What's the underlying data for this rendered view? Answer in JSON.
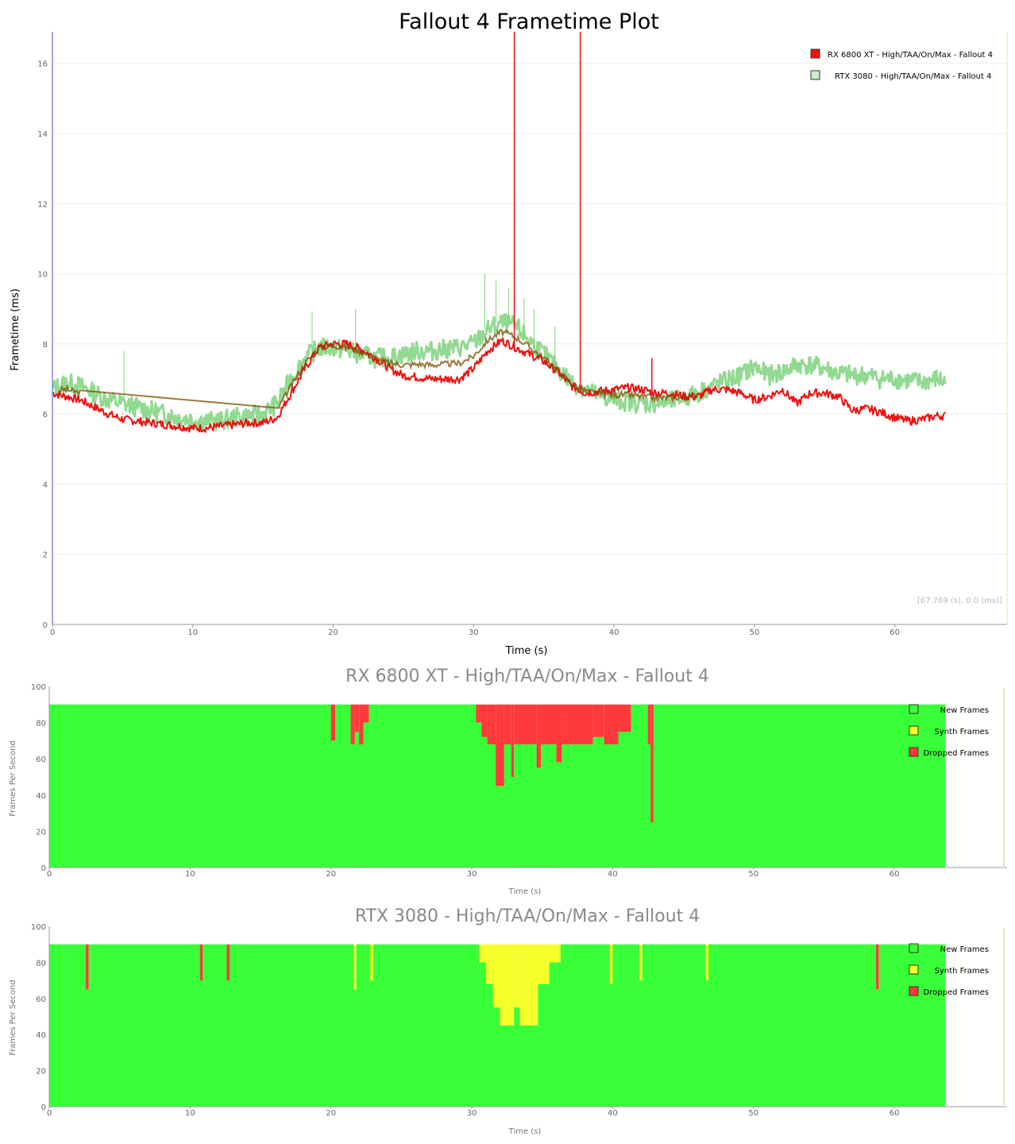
{
  "chart_data": [
    {
      "type": "line",
      "title": "Fallout 4 Frametime Plot",
      "xlabel": "Time (s)",
      "ylabel": "Frametime (ms)",
      "xlim": [
        0,
        68
      ],
      "ylim": [
        0,
        16.9
      ],
      "x_ticks": [
        "0",
        "10",
        "20",
        "30",
        "40",
        "50",
        "60"
      ],
      "y_ticks": [
        "0",
        "2",
        "4",
        "6",
        "8",
        "10",
        "12",
        "14",
        "16"
      ],
      "grid": true,
      "legend_position": "top-right",
      "cursor_readout": "[67.769 (s), 0.0 (ms)]",
      "colors": {
        "rx": "#ee1111",
        "rtx": "#7fd27f",
        "overlap": "#7a4d00"
      },
      "series": [
        {
          "name": "RX 6800 XT - High/TAA/On/Max - Fallout 4",
          "color": "#ee1111",
          "x": [
            0,
            1,
            2,
            3,
            4,
            5,
            6,
            7,
            8,
            9,
            10,
            11,
            12,
            13,
            14,
            15,
            16,
            17,
            18,
            19,
            20,
            21,
            22,
            23,
            24,
            25,
            26,
            27,
            28,
            29,
            30,
            31,
            32,
            33,
            34,
            35,
            36,
            37,
            38,
            39,
            40,
            41,
            42,
            43,
            44,
            45,
            46,
            47,
            48,
            49,
            50,
            51,
            52,
            53,
            54,
            55,
            56,
            57,
            58,
            59,
            60,
            61,
            62,
            63,
            63.6
          ],
          "y": [
            6.6,
            6.5,
            6.4,
            6.2,
            6.0,
            5.85,
            5.8,
            5.75,
            5.7,
            5.65,
            5.6,
            5.6,
            5.65,
            5.7,
            5.75,
            5.75,
            5.9,
            6.6,
            7.3,
            7.9,
            8.0,
            8.0,
            7.85,
            7.6,
            7.3,
            7.1,
            7.05,
            7.0,
            7.0,
            7.0,
            7.3,
            7.8,
            8.1,
            7.9,
            7.7,
            7.5,
            7.2,
            6.8,
            6.6,
            6.65,
            6.7,
            6.75,
            6.7,
            6.6,
            6.6,
            6.5,
            6.5,
            6.7,
            6.7,
            6.6,
            6.4,
            6.5,
            6.7,
            6.3,
            6.6,
            6.6,
            6.5,
            6.1,
            6.15,
            6.05,
            5.9,
            5.8,
            5.85,
            5.95,
            5.95
          ],
          "spikes": [
            [
              32.9,
              16.9
            ],
            [
              37.6,
              16.9
            ],
            [
              42.7,
              7.6
            ]
          ]
        },
        {
          "name": "RTX 3080 - High/TAA/On/Max - Fallout 4",
          "color": "#7fd27f",
          "x": [
            0,
            1,
            2,
            3,
            4,
            5,
            6,
            7,
            8,
            9,
            10,
            11,
            12,
            13,
            14,
            15,
            16,
            17,
            18,
            19,
            20,
            21,
            22,
            23,
            24,
            25,
            26,
            27,
            28,
            29,
            30,
            31,
            32,
            33,
            34,
            35,
            36,
            37,
            38,
            39,
            40,
            41,
            42,
            43,
            44,
            45,
            46,
            47,
            48,
            49,
            50,
            51,
            52,
            53,
            54,
            55,
            56,
            57,
            58,
            59,
            60,
            61,
            62,
            63,
            63.6
          ],
          "y": [
            6.7,
            6.9,
            6.8,
            6.6,
            6.4,
            6.3,
            6.2,
            6.1,
            6.0,
            5.9,
            5.85,
            5.8,
            5.8,
            5.9,
            5.95,
            6.0,
            6.3,
            7.0,
            7.6,
            7.9,
            7.9,
            7.8,
            7.7,
            7.6,
            7.6,
            7.7,
            7.8,
            7.8,
            7.85,
            7.9,
            8.0,
            8.4,
            8.6,
            8.5,
            8.1,
            7.7,
            7.3,
            6.9,
            6.7,
            6.5,
            6.4,
            6.35,
            6.3,
            6.3,
            6.35,
            6.45,
            6.6,
            6.8,
            6.95,
            7.1,
            7.35,
            7.1,
            7.2,
            7.4,
            7.4,
            7.3,
            7.15,
            7.1,
            7.1,
            7.0,
            7.0,
            6.95,
            6.9,
            7.0,
            6.9
          ],
          "spikes": [
            [
              5.1,
              7.8
            ],
            [
              18.5,
              8.9
            ],
            [
              21.6,
              9.0
            ],
            [
              30.8,
              10.0
            ],
            [
              31.6,
              9.8
            ],
            [
              32.5,
              9.6
            ],
            [
              33.6,
              9.3
            ],
            [
              34.3,
              9.0
            ],
            [
              35.8,
              8.5
            ]
          ]
        }
      ]
    },
    {
      "type": "area",
      "title": "RX 6800 XT - High/TAA/On/Max - Fallout 4",
      "xlabel": "Time (s)",
      "ylabel": "Frames Per Second",
      "xlim": [
        0,
        68
      ],
      "ylim": [
        0,
        100
      ],
      "x_ticks": [
        "0",
        "10",
        "20",
        "30",
        "40",
        "50",
        "60"
      ],
      "y_ticks": [
        "0",
        "20",
        "40",
        "60",
        "80",
        "100"
      ],
      "total_fps": 90,
      "end_time": 63.6,
      "colors": {
        "new": "#39ff39",
        "synth": "#f5ff2a",
        "dropped": "#ff3a3a"
      },
      "legend": [
        "New Frames",
        "Synth Frames",
        "Dropped Frames"
      ],
      "segments": [
        {
          "start": 0,
          "end": 20.0,
          "new_fps": 90
        },
        {
          "start": 20.0,
          "end": 20.3,
          "new_fps": 70
        },
        {
          "start": 20.3,
          "end": 21.4,
          "new_fps": 90
        },
        {
          "start": 21.4,
          "end": 21.7,
          "new_fps": 68
        },
        {
          "start": 21.7,
          "end": 22.0,
          "new_fps": 75
        },
        {
          "start": 22.0,
          "end": 22.3,
          "new_fps": 68
        },
        {
          "start": 22.3,
          "end": 22.7,
          "new_fps": 80
        },
        {
          "start": 22.7,
          "end": 30.3,
          "new_fps": 90
        },
        {
          "start": 30.3,
          "end": 30.7,
          "new_fps": 80
        },
        {
          "start": 30.7,
          "end": 31.1,
          "new_fps": 72
        },
        {
          "start": 31.1,
          "end": 31.7,
          "new_fps": 68
        },
        {
          "start": 31.7,
          "end": 32.3,
          "new_fps": 45
        },
        {
          "start": 32.3,
          "end": 32.8,
          "new_fps": 68
        },
        {
          "start": 32.8,
          "end": 33.0,
          "new_fps": 50
        },
        {
          "start": 33.0,
          "end": 34.6,
          "new_fps": 68
        },
        {
          "start": 34.6,
          "end": 34.9,
          "new_fps": 55
        },
        {
          "start": 34.9,
          "end": 36.0,
          "new_fps": 68
        },
        {
          "start": 36.0,
          "end": 36.4,
          "new_fps": 58
        },
        {
          "start": 36.4,
          "end": 38.6,
          "new_fps": 68
        },
        {
          "start": 38.6,
          "end": 39.4,
          "new_fps": 72
        },
        {
          "start": 39.4,
          "end": 40.4,
          "new_fps": 68
        },
        {
          "start": 40.4,
          "end": 41.3,
          "new_fps": 75
        },
        {
          "start": 41.3,
          "end": 42.5,
          "new_fps": 90
        },
        {
          "start": 42.5,
          "end": 42.7,
          "new_fps": 68
        },
        {
          "start": 42.7,
          "end": 42.9,
          "new_fps": 25
        },
        {
          "start": 42.9,
          "end": 63.6,
          "new_fps": 90
        }
      ]
    },
    {
      "type": "area",
      "title": "RTX 3080 - High/TAA/On/Max - Fallout 4",
      "xlabel": "Time (s)",
      "ylabel": "Frames Per Second",
      "xlim": [
        0,
        68
      ],
      "ylim": [
        0,
        100
      ],
      "x_ticks": [
        "0",
        "10",
        "20",
        "30",
        "40",
        "50",
        "60"
      ],
      "y_ticks": [
        "0",
        "20",
        "40",
        "60",
        "80",
        "100"
      ],
      "total_fps": 90,
      "end_time": 63.6,
      "colors": {
        "new": "#39ff39",
        "synth": "#f5ff2a",
        "dropped": "#ff3a3a"
      },
      "legend": [
        "New Frames",
        "Synth Frames",
        "Dropped Frames"
      ],
      "segments": [
        {
          "start": 0,
          "end": 2.6,
          "new_fps": 90
        },
        {
          "start": 2.6,
          "end": 2.8,
          "new_fps": 65,
          "kind": "dropped"
        },
        {
          "start": 2.8,
          "end": 10.7,
          "new_fps": 90
        },
        {
          "start": 10.7,
          "end": 10.9,
          "new_fps": 70,
          "kind": "dropped"
        },
        {
          "start": 10.9,
          "end": 12.6,
          "new_fps": 90
        },
        {
          "start": 12.6,
          "end": 12.8,
          "new_fps": 70,
          "kind": "dropped"
        },
        {
          "start": 12.8,
          "end": 21.6,
          "new_fps": 90
        },
        {
          "start": 21.6,
          "end": 21.8,
          "new_fps": 65,
          "kind": "synth"
        },
        {
          "start": 21.8,
          "end": 22.8,
          "new_fps": 90
        },
        {
          "start": 22.8,
          "end": 23.0,
          "new_fps": 70,
          "kind": "synth"
        },
        {
          "start": 23.0,
          "end": 30.5,
          "new_fps": 90
        },
        {
          "start": 30.5,
          "end": 31.0,
          "new_fps": 80,
          "kind": "synth"
        },
        {
          "start": 31.0,
          "end": 31.5,
          "new_fps": 68,
          "kind": "synth"
        },
        {
          "start": 31.5,
          "end": 32.0,
          "new_fps": 55,
          "kind": "synth"
        },
        {
          "start": 32.0,
          "end": 33.0,
          "new_fps": 45,
          "kind": "synth"
        },
        {
          "start": 33.0,
          "end": 33.4,
          "new_fps": 55,
          "kind": "synth"
        },
        {
          "start": 33.4,
          "end": 34.7,
          "new_fps": 45,
          "kind": "synth"
        },
        {
          "start": 34.7,
          "end": 35.5,
          "new_fps": 68,
          "kind": "synth"
        },
        {
          "start": 35.5,
          "end": 36.3,
          "new_fps": 80,
          "kind": "synth"
        },
        {
          "start": 36.3,
          "end": 39.8,
          "new_fps": 90
        },
        {
          "start": 39.8,
          "end": 40.0,
          "new_fps": 68,
          "kind": "synth"
        },
        {
          "start": 40.0,
          "end": 41.9,
          "new_fps": 90
        },
        {
          "start": 41.9,
          "end": 42.1,
          "new_fps": 70,
          "kind": "synth"
        },
        {
          "start": 42.1,
          "end": 46.6,
          "new_fps": 90
        },
        {
          "start": 46.6,
          "end": 46.8,
          "new_fps": 70,
          "kind": "synth"
        },
        {
          "start": 46.8,
          "end": 58.7,
          "new_fps": 90
        },
        {
          "start": 58.7,
          "end": 58.9,
          "new_fps": 65,
          "kind": "dropped"
        },
        {
          "start": 58.9,
          "end": 63.6,
          "new_fps": 90
        }
      ]
    }
  ]
}
